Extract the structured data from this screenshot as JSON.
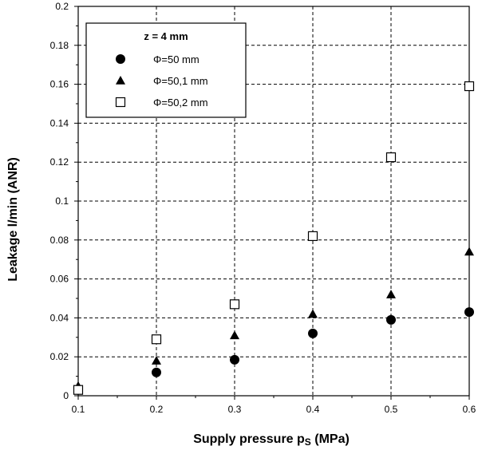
{
  "chart_data": {
    "type": "scatter",
    "title": "",
    "xlabel": "Supply pressure p",
    "xlabel_sub": "S",
    "xlabel_unit": " (MPa)",
    "ylabel": "Leakage   l/min (ANR)",
    "xlim": [
      0.1,
      0.6
    ],
    "ylim": [
      0,
      0.2
    ],
    "xticks": [
      "0.1",
      "0.2",
      "0.3",
      "0.4",
      "0.5",
      "0.6"
    ],
    "yticks": [
      "0",
      "0.02",
      "0.04",
      "0.06",
      "0.08",
      "0.1",
      "0.12",
      "0.14",
      "0.16",
      "0.18",
      "0.2"
    ],
    "grid": true,
    "legend_position": "top-left",
    "legend_title": "z = 4 mm",
    "series": [
      {
        "name": "Φ=50 mm",
        "marker": "circle",
        "x": [
          0.1,
          0.2,
          0.3,
          0.4,
          0.5,
          0.6
        ],
        "y": [
          0.003,
          0.012,
          0.0185,
          0.032,
          0.039,
          0.043
        ]
      },
      {
        "name": "Φ=50,1 mm",
        "marker": "triangle",
        "x": [
          0.1,
          0.2,
          0.3,
          0.4,
          0.5,
          0.6
        ],
        "y": [
          0.005,
          0.018,
          0.031,
          0.042,
          0.052,
          0.074
        ]
      },
      {
        "name": "Φ=50,2 mm",
        "marker": "square-open",
        "x": [
          0.1,
          0.2,
          0.3,
          0.4,
          0.5,
          0.6
        ],
        "y": [
          0.003,
          0.029,
          0.047,
          0.082,
          0.1225,
          0.159
        ]
      }
    ]
  }
}
